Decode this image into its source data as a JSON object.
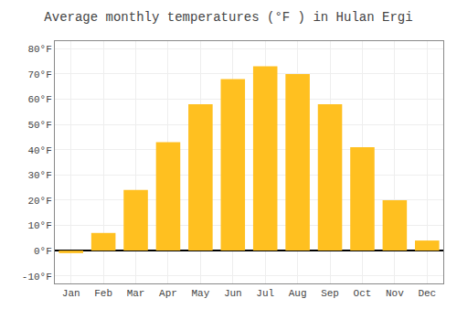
{
  "chart_data": {
    "type": "bar",
    "title": "Average monthly temperatures (°F ) in Hulan Ergi",
    "categories": [
      "Jan",
      "Feb",
      "Mar",
      "Apr",
      "May",
      "Jun",
      "Jul",
      "Aug",
      "Sep",
      "Oct",
      "Nov",
      "Dec"
    ],
    "values": [
      -1,
      7,
      24,
      43,
      58,
      68,
      73,
      70,
      58,
      41,
      20,
      4
    ],
    "color": "#FFC020",
    "ylim": [
      -13,
      83
    ],
    "yticks": [
      {
        "value": -10,
        "label": "-10°F"
      },
      {
        "value": 0,
        "label": "0°F"
      },
      {
        "value": 10,
        "label": "10°F"
      },
      {
        "value": 20,
        "label": "20°F"
      },
      {
        "value": 30,
        "label": "30°F"
      },
      {
        "value": 40,
        "label": "40°F"
      },
      {
        "value": 50,
        "label": "50°F"
      },
      {
        "value": 60,
        "label": "60°F"
      },
      {
        "value": 70,
        "label": "70°F"
      },
      {
        "value": 80,
        "label": "80°F"
      }
    ],
    "grid": true
  }
}
